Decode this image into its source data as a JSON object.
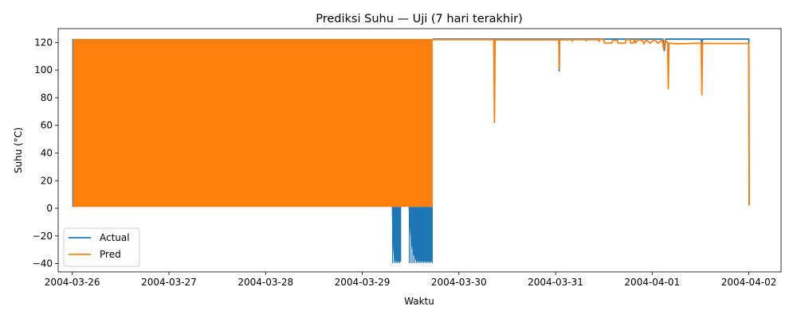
{
  "chart_data": {
    "type": "line",
    "title": "Prediksi Suhu — Uji (7 hari terakhir)",
    "xlabel": "Waktu",
    "ylabel": "Suhu (°C)",
    "x_type": "date",
    "xlim": [
      "2004-03-25 20:30",
      "2004-04-02 08:00"
    ],
    "ylim": [
      -46,
      130
    ],
    "x_ticks": [
      "2004-03-26",
      "2004-03-27",
      "2004-03-28",
      "2004-03-29",
      "2004-03-30",
      "2004-03-31",
      "2004-04-01",
      "2004-04-02"
    ],
    "y_ticks": [
      -40,
      -20,
      0,
      20,
      40,
      60,
      80,
      100,
      120
    ],
    "grid": false,
    "legend": {
      "position": "lower-left"
    },
    "noisy_band": {
      "x_range": [
        "2004-03-26 00:00",
        "2004-03-29 17:30"
      ],
      "actual_range": [
        1,
        122.5
      ],
      "pred_range": [
        1,
        122.5
      ],
      "actual_dips": [
        {
          "x_range": [
            "2004-03-29 07:20",
            "2004-03-29 09:40"
          ],
          "min": -38.5
        },
        {
          "x_range": [
            "2004-03-29 11:30",
            "2004-03-29 17:30"
          ],
          "min": -38.5
        }
      ]
    },
    "series": [
      {
        "name": "Actual",
        "color": "#1f77b4",
        "points": [
          [
            "2004-03-29 17:30",
            122.4
          ],
          [
            "2004-03-31 00:50",
            122.4
          ],
          [
            "2004-03-31 00:55",
            99.5
          ],
          [
            "2004-03-31 01:00",
            122.4
          ],
          [
            "2004-04-01 02:40",
            122.4
          ],
          [
            "2004-04-01 03:00",
            114.0
          ],
          [
            "2004-04-01 03:20",
            122.4
          ],
          [
            "2004-04-01 12:10",
            122.4
          ],
          [
            "2004-04-01 12:20",
            119.5
          ],
          [
            "2004-04-01 12:30",
            122.4
          ],
          [
            "2004-04-02 00:00",
            122.4
          ],
          [
            "2004-04-02 00:05",
            2.0
          ]
        ]
      },
      {
        "name": "Pred",
        "color": "#ff7f0e",
        "points": [
          [
            "2004-03-29 17:30",
            122.0
          ],
          [
            "2004-03-30 08:40",
            122.0
          ],
          [
            "2004-03-30 08:50",
            62.0
          ],
          [
            "2004-03-30 09:00",
            121.9
          ],
          [
            "2004-03-31 00:50",
            121.9
          ],
          [
            "2004-03-31 00:55",
            101.0
          ],
          [
            "2004-03-31 01:00",
            121.9
          ],
          [
            "2004-03-31 04:00",
            122.0
          ],
          [
            "2004-03-31 04:10",
            121.0
          ],
          [
            "2004-03-31 04:20",
            122.0
          ],
          [
            "2004-03-31 07:30",
            122.0
          ],
          [
            "2004-03-31 07:40",
            121.2
          ],
          [
            "2004-03-31 07:50",
            122.0
          ],
          [
            "2004-03-31 10:40",
            122.0
          ],
          [
            "2004-03-31 10:50",
            120.8
          ],
          [
            "2004-03-31 11:00",
            122.2
          ],
          [
            "2004-03-31 12:00",
            122.2
          ],
          [
            "2004-03-31 12:10",
            119.5
          ],
          [
            "2004-03-31 14:00",
            119.5
          ],
          [
            "2004-03-31 14:10",
            121.5
          ],
          [
            "2004-03-31 15:20",
            121.5
          ],
          [
            "2004-03-31 15:30",
            119.5
          ],
          [
            "2004-03-31 17:20",
            119.5
          ],
          [
            "2004-03-31 17:30",
            122.0
          ],
          [
            "2004-03-31 18:30",
            122.0
          ],
          [
            "2004-03-31 18:40",
            119.5
          ],
          [
            "2004-03-31 19:20",
            119.5
          ],
          [
            "2004-03-31 19:30",
            122.0
          ],
          [
            "2004-03-31 19:40",
            122.0
          ],
          [
            "2004-03-31 19:50",
            119.5
          ],
          [
            "2004-03-31 20:30",
            122.0
          ],
          [
            "2004-03-31 21:30",
            121.5
          ],
          [
            "2004-03-31 22:00",
            119.0
          ],
          [
            "2004-03-31 22:30",
            122.0
          ],
          [
            "2004-03-31 23:30",
            119.5
          ],
          [
            "2004-04-01 00:30",
            122.0
          ],
          [
            "2004-04-01 01:30",
            119.5
          ],
          [
            "2004-04-01 02:30",
            122.0
          ],
          [
            "2004-04-01 02:50",
            115.0
          ],
          [
            "2004-04-01 03:10",
            121.5
          ],
          [
            "2004-04-01 03:50",
            120.0
          ],
          [
            "2004-04-01 04:00",
            86.5
          ],
          [
            "2004-04-01 04:10",
            119.5
          ],
          [
            "2004-04-01 06:00",
            119.0
          ],
          [
            "2004-04-01 12:10",
            119.5
          ],
          [
            "2004-04-01 12:20",
            82.0
          ],
          [
            "2004-04-01 12:30",
            119.3
          ],
          [
            "2004-04-02 00:00",
            119.3
          ],
          [
            "2004-04-02 00:05",
            2.0
          ]
        ]
      }
    ]
  }
}
